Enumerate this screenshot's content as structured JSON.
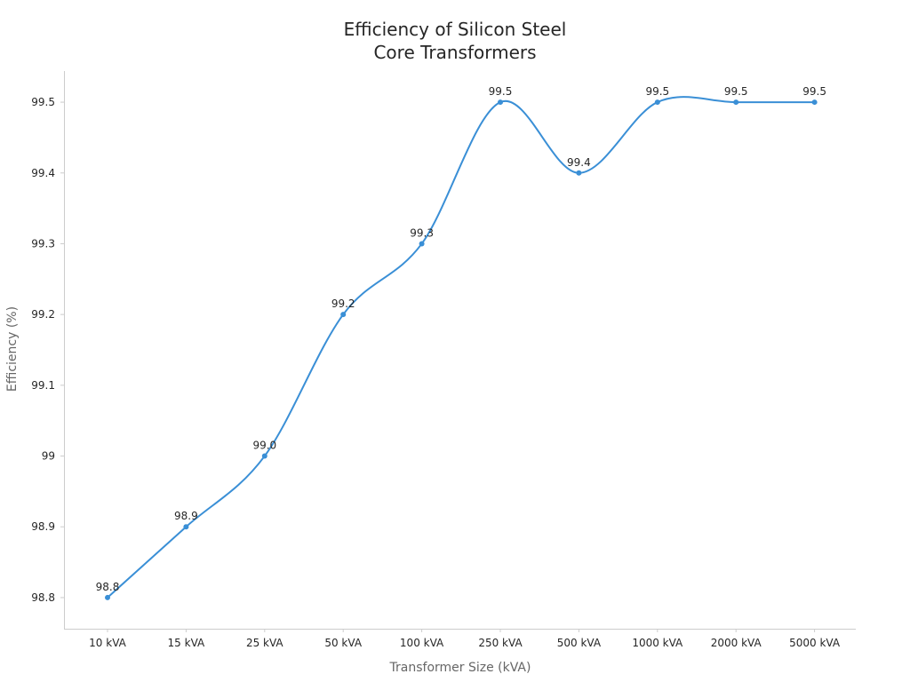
{
  "chart_data": {
    "type": "line",
    "title_lines": [
      "Efficiency of Silicon Steel",
      "Core Transformers"
    ],
    "xlabel": "Transformer Size (kVA)",
    "ylabel": "Efficiency (%)",
    "categories": [
      "10 kVA",
      "15 kVA",
      "25 kVA",
      "50 kVA",
      "100 kVA",
      "250 kVA",
      "500 kVA",
      "1000 kVA",
      "2000 kVA",
      "5000 kVA"
    ],
    "series": [
      {
        "values": [
          98.8,
          98.9,
          99.0,
          99.2,
          99.3,
          99.5,
          99.4,
          99.5,
          99.5,
          99.5
        ],
        "data_labels": [
          "98.8",
          "98.9",
          "99.0",
          "99.2",
          "99.3",
          "99.5",
          "99.4",
          "99.5",
          "99.5",
          "99.5"
        ],
        "color": "#3a8fd6"
      }
    ],
    "yticks": [
      98.8,
      98.9,
      99,
      99.1,
      99.2,
      99.3,
      99.4,
      99.5
    ],
    "ytick_labels": [
      "98.8",
      "98.9",
      "99",
      "99.1",
      "99.2",
      "99.3",
      "99.4",
      "99.5"
    ],
    "ylim": [
      98.756,
      99.544
    ],
    "grid": false,
    "smooth": true,
    "axis_color": "#cccccc"
  }
}
